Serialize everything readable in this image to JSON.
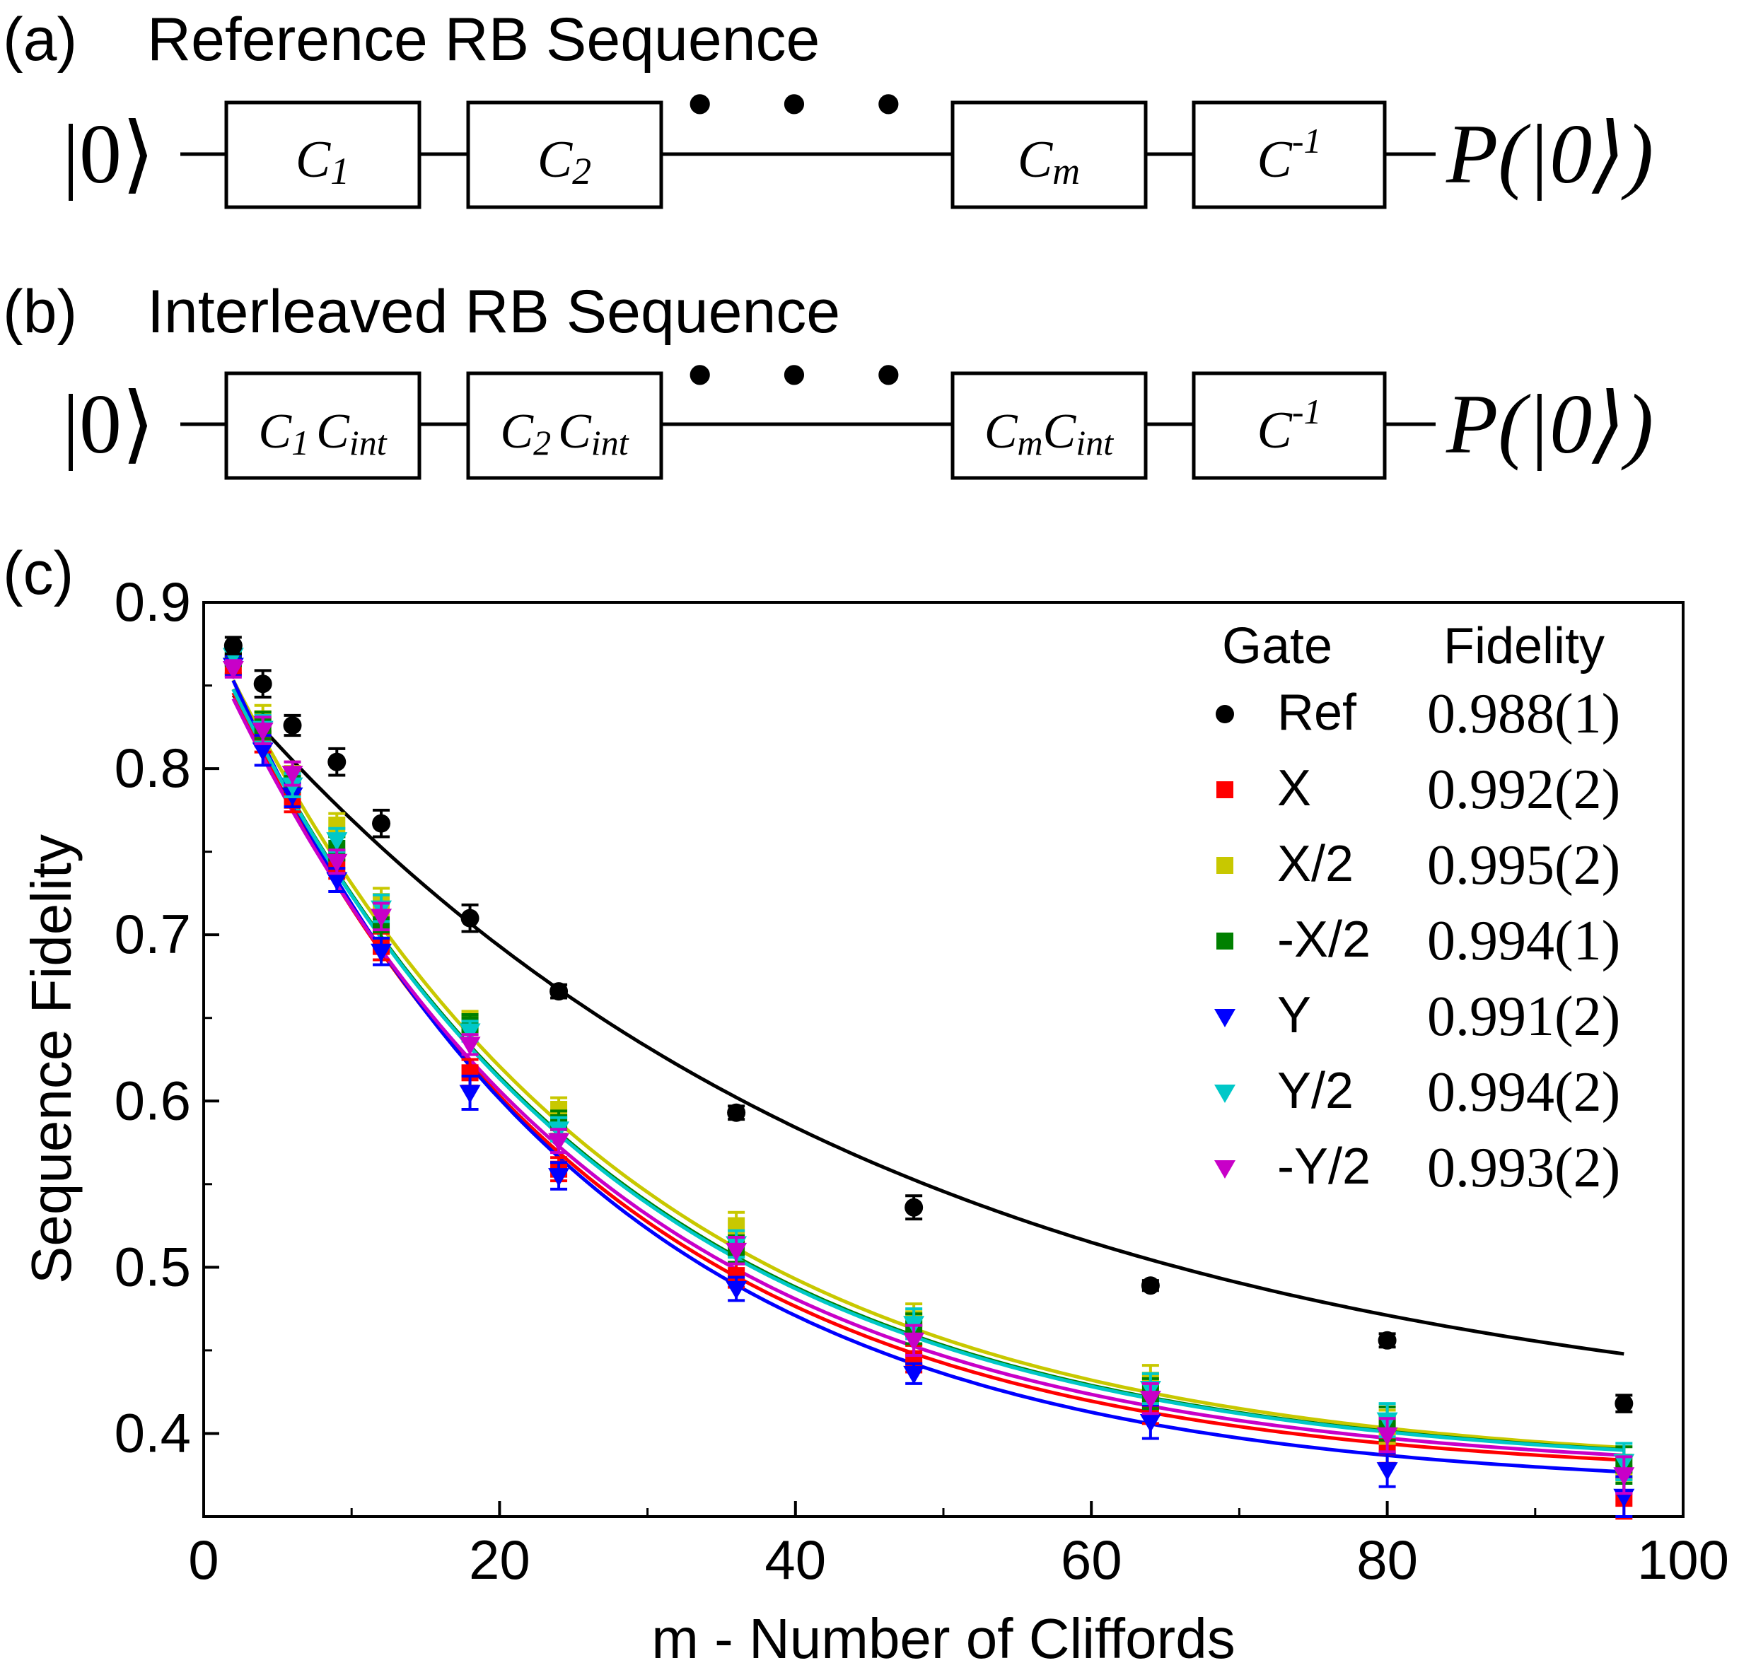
{
  "panel_a": {
    "label": "(a)",
    "title": "Reference RB Sequence",
    "input_state": "|0⟩",
    "output": "P(|0⟩)",
    "dots": "• • •",
    "boxes": [
      {
        "base": "C",
        "sub": "1",
        "suffix": ""
      },
      {
        "base": "C",
        "sub": "2",
        "suffix": ""
      },
      {
        "base": "C",
        "sub": "m",
        "suffix": ""
      },
      {
        "base": "C",
        "sup": "-1",
        "suffix": ""
      }
    ]
  },
  "panel_b": {
    "label": "(b)",
    "title": "Interleaved RB Sequence",
    "input_state": "|0⟩",
    "output": "P(|0⟩)",
    "dots": "• • •",
    "boxes": [
      {
        "base": "C",
        "sub": "1",
        "suffix": "C",
        "suffix_sub": "int"
      },
      {
        "base": "C",
        "sub": "2",
        "suffix": "C",
        "suffix_sub": "int"
      },
      {
        "base": "C",
        "sub": "m",
        "suffix": "C",
        "suffix_sub": "int"
      },
      {
        "base": "C",
        "sup": "-1",
        "suffix": ""
      }
    ]
  },
  "panel_c": {
    "label": "(c)"
  },
  "chart_data": {
    "type": "scatter",
    "xlabel": "m - Number of Cliffords",
    "ylabel": "Sequence Fidelity",
    "xlim": [
      0,
      100
    ],
    "ylim": [
      0.35,
      0.9
    ],
    "xticks": [
      0,
      20,
      40,
      60,
      80,
      100
    ],
    "yticks": [
      0.4,
      0.5,
      0.6,
      0.7,
      0.8,
      0.9
    ],
    "grid": false,
    "legend": {
      "position": "top-right",
      "header_gate": "Gate",
      "header_fidelity": "Fidelity"
    },
    "x": [
      2,
      4,
      6,
      9,
      12,
      18,
      24,
      36,
      48,
      64,
      80,
      96
    ],
    "series": [
      {
        "name": "Ref",
        "fidelity": "0.988(1)",
        "color": "#000000",
        "marker": "circle",
        "values": [
          0.874,
          0.851,
          0.826,
          0.804,
          0.767,
          0.71,
          0.666,
          0.593,
          0.536,
          0.489,
          0.456,
          0.418
        ],
        "errors": [
          0.005,
          0.008,
          0.006,
          0.008,
          0.008,
          0.008,
          0.004,
          0.004,
          0.007,
          0.003,
          0.004,
          0.005
        ],
        "fit": {
          "A": 0.47,
          "p": 0.9775,
          "B": 0.395
        }
      },
      {
        "name": "X",
        "fidelity": "0.992(2)",
        "color": "#ff0000",
        "marker": "square",
        "values": [
          0.862,
          0.818,
          0.781,
          0.741,
          0.693,
          0.617,
          0.559,
          0.495,
          0.445,
          0.415,
          0.392,
          0.361
        ],
        "errors": [
          0.005,
          0.008,
          0.007,
          0.007,
          0.008,
          0.008,
          0.007,
          0.007,
          0.008,
          0.009,
          0.01,
          0.012
        ],
        "fit": {
          "A": 0.512,
          "p": 0.9608,
          "B": 0.373
        }
      },
      {
        "name": "X/2",
        "fidelity": "0.995(2)",
        "color": "#c8c800",
        "marker": "square",
        "values": [
          0.87,
          0.83,
          0.797,
          0.766,
          0.72,
          0.648,
          0.595,
          0.525,
          0.469,
          0.432,
          0.404,
          0.376
        ],
        "errors": [
          0.005,
          0.008,
          0.007,
          0.007,
          0.008,
          0.006,
          0.007,
          0.008,
          0.009,
          0.009,
          0.01,
          0.011
        ],
        "fit": {
          "A": 0.513,
          "p": 0.9635,
          "B": 0.377
        }
      },
      {
        "name": "-X/2",
        "fidelity": "0.994(1)",
        "color": "#008000",
        "marker": "square",
        "values": [
          0.867,
          0.826,
          0.793,
          0.752,
          0.706,
          0.646,
          0.587,
          0.511,
          0.463,
          0.424,
          0.406,
          0.381
        ],
        "errors": [
          0.005,
          0.008,
          0.007,
          0.007,
          0.008,
          0.006,
          0.007,
          0.008,
          0.009,
          0.009,
          0.01,
          0.011
        ],
        "fit": {
          "A": 0.508,
          "p": 0.9627,
          "B": 0.377
        }
      },
      {
        "name": "Y",
        "fidelity": "0.991(2)",
        "color": "#0000ff",
        "marker": "tri-down",
        "values": [
          0.862,
          0.811,
          0.784,
          0.733,
          0.69,
          0.605,
          0.555,
          0.487,
          0.436,
          0.407,
          0.378,
          0.362
        ],
        "errors": [
          0.006,
          0.009,
          0.007,
          0.007,
          0.008,
          0.01,
          0.008,
          0.007,
          0.006,
          0.01,
          0.01,
          0.012
        ],
        "fit": {
          "A": 0.528,
          "p": 0.9604,
          "B": 0.366
        }
      },
      {
        "name": "Y/2",
        "fidelity": "0.994(2)",
        "color": "#00c8c8",
        "marker": "tri-down",
        "values": [
          0.868,
          0.824,
          0.79,
          0.757,
          0.716,
          0.642,
          0.583,
          0.514,
          0.466,
          0.427,
          0.408,
          0.383
        ],
        "errors": [
          0.005,
          0.008,
          0.007,
          0.007,
          0.008,
          0.006,
          0.007,
          0.008,
          0.009,
          0.009,
          0.01,
          0.011
        ],
        "fit": {
          "A": 0.508,
          "p": 0.9625,
          "B": 0.377
        }
      },
      {
        "name": "-Y/2",
        "fidelity": "0.993(2)",
        "color": "#c800c8",
        "marker": "tri-down",
        "values": [
          0.86,
          0.823,
          0.797,
          0.744,
          0.711,
          0.634,
          0.576,
          0.51,
          0.456,
          0.421,
          0.399,
          0.375
        ],
        "errors": [
          0.005,
          0.008,
          0.007,
          0.007,
          0.008,
          0.006,
          0.007,
          0.008,
          0.009,
          0.009,
          0.01,
          0.011
        ],
        "fit": {
          "A": 0.505,
          "p": 0.9617,
          "B": 0.375
        }
      }
    ]
  }
}
